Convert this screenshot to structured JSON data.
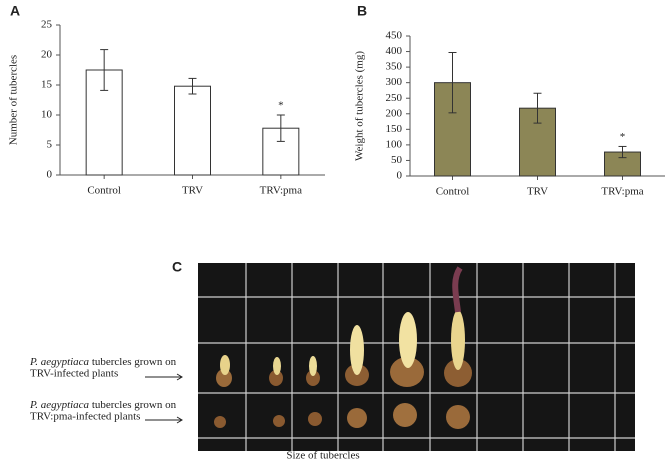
{
  "chart_data": [
    {
      "type": "bar",
      "panel": "A",
      "ylabel": "Number of tubercles",
      "categories": [
        "Control",
        "TRV",
        "TRV:pma"
      ],
      "values": [
        17.5,
        14.8,
        7.8
      ],
      "errors": [
        3.4,
        1.3,
        2.2
      ],
      "color": "#ffffff",
      "ylim": [
        0,
        25
      ],
      "yticks": [
        0,
        5,
        10,
        15,
        20,
        25
      ],
      "grid": false,
      "annotation": {
        "text": "*",
        "category": "TRV:pma"
      }
    },
    {
      "type": "bar",
      "panel": "B",
      "ylabel": "Weight of tubercles (mg)",
      "categories": [
        "Control",
        "TRV",
        "TRV:pma"
      ],
      "values": [
        300,
        218,
        77
      ],
      "errors": [
        97,
        48,
        18
      ],
      "color": "#8c8656",
      "ylim": [
        0,
        450
      ],
      "yticks": [
        0,
        50,
        100,
        150,
        200,
        250,
        300,
        350,
        400,
        450
      ],
      "grid": false,
      "annotation": {
        "text": "*",
        "category": "TRV:pma"
      }
    }
  ],
  "panel_c": {
    "letter": "C",
    "caption": "Size of tubercles",
    "labels": [
      {
        "species": "P. aegyptiaca",
        "line_1": " tubercles grown on",
        "line_2": "TRV-infected  plants"
      },
      {
        "species": "P. aegyptiaca",
        "line_1": " tubercles grown on",
        "line_2": "TRV:pma-infected  plants"
      }
    ]
  }
}
